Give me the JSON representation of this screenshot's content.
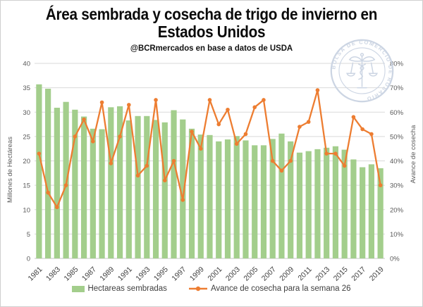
{
  "header": {
    "title_line1": "Área sembrada y cosecha de trigo de invierno en",
    "title_line2": "Estados Unidos",
    "subtitle": "@BCRmercados en base a datos de USDA"
  },
  "logo": {
    "text": "BOLSA DE COMERCIO DE ROSARIO",
    "color": "#ccd5e3"
  },
  "colors": {
    "bar": "#a3ce8c",
    "line": "#ed7d31",
    "grid": "#d9d9d9",
    "baseline": "#c6c6c6",
    "axis_text": "#595959",
    "tick_text": "#3f3f3f",
    "legend_text": "#3f3f3f",
    "title": "#0a0a0a"
  },
  "chart_data": {
    "type": "combo-bar-line",
    "x": [
      1981,
      1982,
      1983,
      1984,
      1985,
      1986,
      1987,
      1988,
      1989,
      1990,
      1991,
      1992,
      1993,
      1994,
      1995,
      1996,
      1997,
      1998,
      1999,
      2000,
      2001,
      2002,
      2003,
      2004,
      2005,
      2006,
      2007,
      2008,
      2009,
      2010,
      2011,
      2012,
      2013,
      2014,
      2015,
      2016,
      2017,
      2018,
      2019
    ],
    "x_tick_labels": [
      "1981",
      "1983",
      "1985",
      "1987",
      "1989",
      "1991",
      "1993",
      "1995",
      "1997",
      "1999",
      "2001",
      "2003",
      "2005",
      "2007",
      "2009",
      "2011",
      "2013",
      "2015",
      "2017",
      "2019"
    ],
    "series": [
      {
        "name": "Hectareas sembradas",
        "type": "bar",
        "axis": "left",
        "values": [
          35.7,
          34.8,
          30.9,
          32.1,
          30.5,
          29.1,
          26.6,
          26.5,
          31.0,
          31.2,
          28.3,
          29.2,
          29.2,
          28.4,
          27.9,
          30.4,
          28.5,
          26.6,
          25.4,
          25.3,
          24.0,
          24.4,
          25.1,
          24.2,
          23.2,
          23.2,
          24.5,
          25.6,
          24.0,
          21.7,
          22.0,
          22.4,
          22.7,
          23.0,
          22.3,
          20.3,
          18.7,
          19.3,
          18.5
        ]
      },
      {
        "name": "Avance de cosecha para la semana 26",
        "type": "line",
        "axis": "right",
        "values": [
          43,
          27,
          21,
          30,
          50,
          57,
          48,
          64,
          39,
          50,
          63,
          34,
          38,
          65,
          32,
          40,
          24,
          52,
          45,
          65,
          55,
          61,
          47,
          51,
          62,
          65,
          40,
          36,
          40,
          54,
          56,
          69,
          43,
          43,
          38,
          58,
          53,
          51,
          30
        ]
      }
    ],
    "left_axis": {
      "label": "Millones de Hectáreas",
      "min": 0,
      "max": 40,
      "step": 5
    },
    "right_axis": {
      "label": "Avance de cosecha",
      "min": 0,
      "max": 80,
      "step": 10,
      "suffix": "%"
    },
    "grid": true,
    "legend_position": "bottom",
    "title": "Área sembrada y cosecha de trigo de invierno en Estados Unidos",
    "subtitle": "@BCRmercados en base a datos de USDA"
  },
  "legend": {
    "bar_label": "Hectareas sembradas",
    "line_label": "Avance de cosecha para la semana 26"
  }
}
